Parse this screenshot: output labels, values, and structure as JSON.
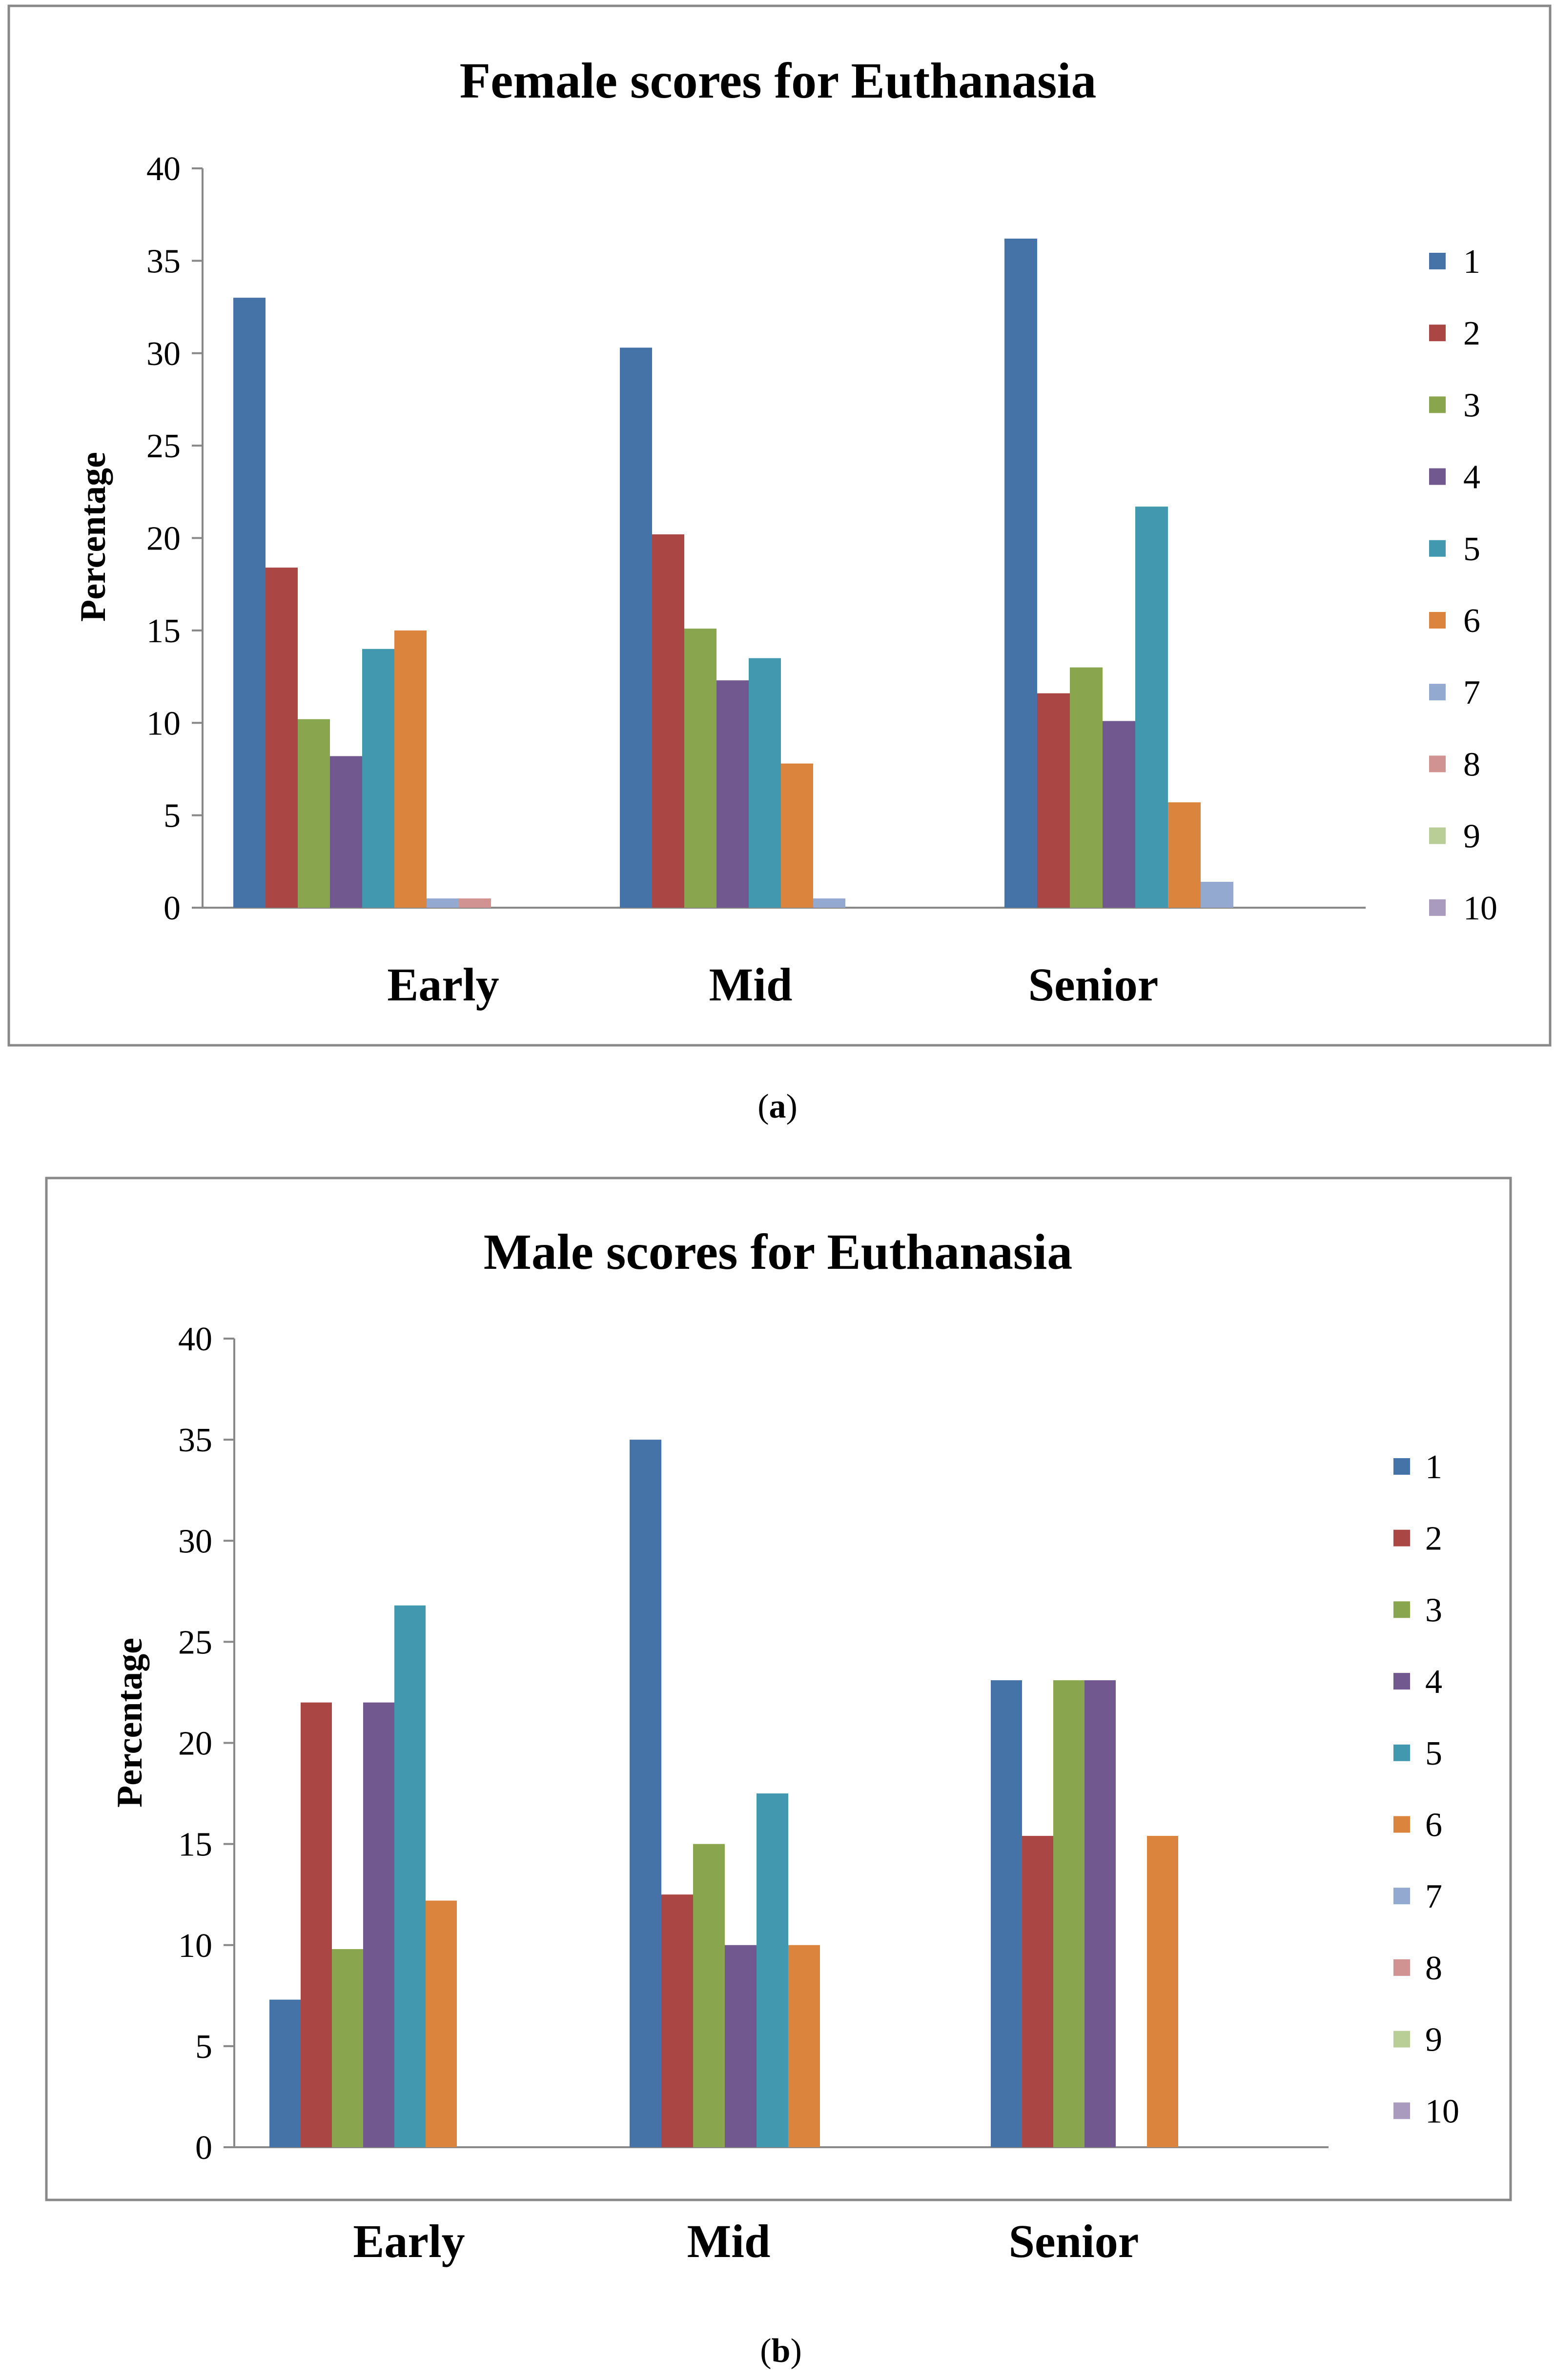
{
  "chart_data": [
    {
      "type": "bar",
      "title": "Female scores for Euthanasia",
      "xlabel": "",
      "ylabel": "Percentage",
      "ylim": [
        0,
        40
      ],
      "yticks": [
        0,
        5,
        10,
        15,
        20,
        25,
        30,
        35,
        40
      ],
      "categories": [
        "Early",
        "Mid",
        "Senior"
      ],
      "legend_position": "right",
      "caption_letter": "a",
      "series": [
        {
          "name": "1",
          "color": "#4572A7",
          "values": [
            33.0,
            30.3,
            36.2
          ]
        },
        {
          "name": "2",
          "color": "#AA4643",
          "values": [
            18.4,
            20.2,
            11.6
          ]
        },
        {
          "name": "3",
          "color": "#89A54E",
          "values": [
            10.2,
            15.1,
            13.0
          ]
        },
        {
          "name": "4",
          "color": "#71588F",
          "values": [
            8.2,
            12.3,
            10.1
          ]
        },
        {
          "name": "5",
          "color": "#4198AF",
          "values": [
            14.0,
            13.5,
            21.7
          ]
        },
        {
          "name": "6",
          "color": "#DB843D",
          "values": [
            15.0,
            7.8,
            5.7
          ]
        },
        {
          "name": "7",
          "color": "#93A9CF",
          "values": [
            0.5,
            0.5,
            1.4
          ]
        },
        {
          "name": "8",
          "color": "#D19392",
          "values": [
            0.5,
            0,
            0
          ]
        },
        {
          "name": "9",
          "color": "#B9CD96",
          "values": [
            0,
            0,
            0
          ]
        },
        {
          "name": "10",
          "color": "#A99BBD",
          "values": [
            0,
            0,
            0
          ]
        }
      ]
    },
    {
      "type": "bar",
      "title": "Male scores for Euthanasia",
      "xlabel": "",
      "ylabel": "Percentage",
      "ylim": [
        0,
        40
      ],
      "yticks": [
        0,
        5,
        10,
        15,
        20,
        25,
        30,
        35,
        40
      ],
      "categories": [
        "Early",
        "Mid",
        "Senior"
      ],
      "legend_position": "right",
      "caption_letter": "b",
      "series": [
        {
          "name": "1",
          "color": "#4572A7",
          "values": [
            7.3,
            35.0,
            23.1
          ]
        },
        {
          "name": "2",
          "color": "#AA4643",
          "values": [
            22.0,
            12.5,
            15.4
          ]
        },
        {
          "name": "3",
          "color": "#89A54E",
          "values": [
            9.8,
            15.0,
            23.1
          ]
        },
        {
          "name": "4",
          "color": "#71588F",
          "values": [
            22.0,
            10.0,
            23.1
          ]
        },
        {
          "name": "5",
          "color": "#4198AF",
          "values": [
            26.8,
            17.5,
            0
          ]
        },
        {
          "name": "6",
          "color": "#DB843D",
          "values": [
            12.2,
            10.0,
            15.4
          ]
        },
        {
          "name": "7",
          "color": "#93A9CF",
          "values": [
            0,
            0,
            0
          ]
        },
        {
          "name": "8",
          "color": "#D19392",
          "values": [
            0,
            0,
            0
          ]
        },
        {
          "name": "9",
          "color": "#B9CD96",
          "values": [
            0,
            0,
            0
          ]
        },
        {
          "name": "10",
          "color": "#A99BBD",
          "values": [
            0,
            0,
            0
          ]
        }
      ]
    }
  ]
}
